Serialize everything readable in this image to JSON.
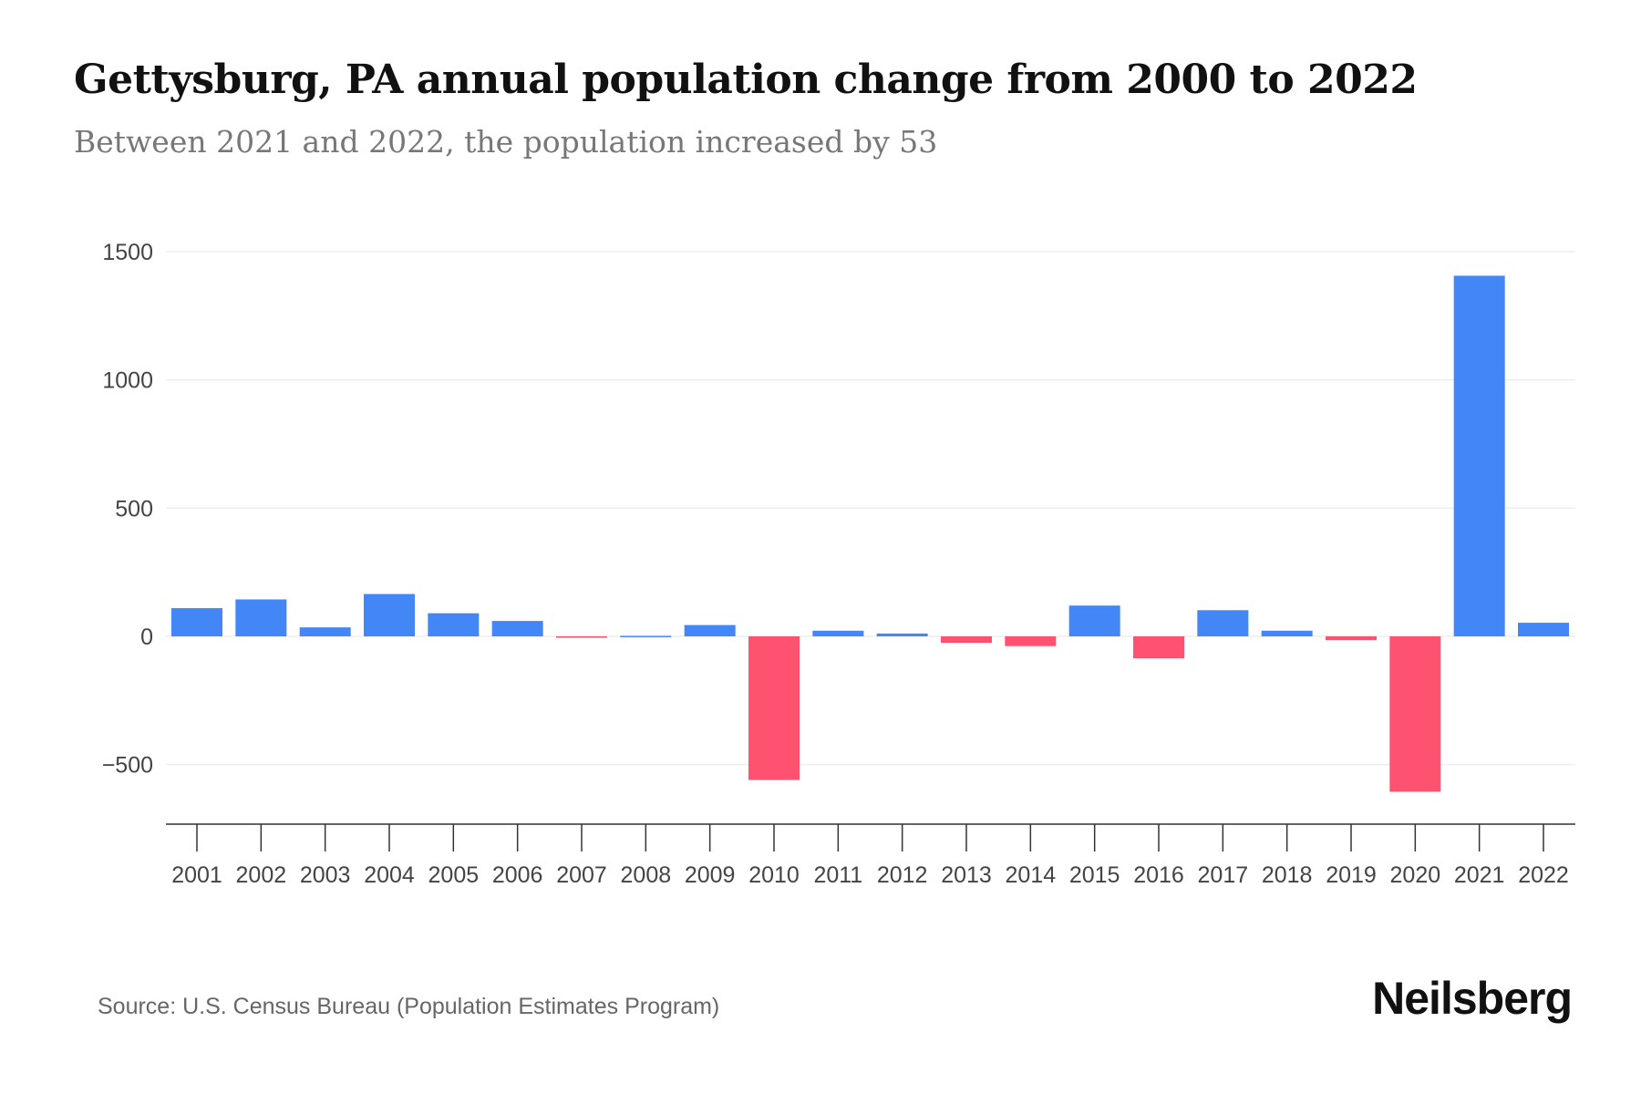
{
  "title": "Gettysburg, PA annual population change from 2000 to 2022",
  "subtitle": "Between 2021 and 2022, the population increased by 53",
  "source": "Source: U.S. Census Bureau (Population Estimates Program)",
  "logo": "Neilsberg",
  "colors": {
    "positive": "#4287f5",
    "negative": "#ff5270"
  },
  "chart_data": {
    "type": "bar",
    "title": "Gettysburg, PA annual population change from 2000 to 2022",
    "xlabel": "",
    "ylabel": "",
    "ylim": [
      -600,
      1500
    ],
    "yticks": [
      -500,
      0,
      500,
      1000,
      1500
    ],
    "ytick_labels": [
      "−500",
      "0",
      "500",
      "1000",
      "1500"
    ],
    "grid": true,
    "categories": [
      "2001",
      "2002",
      "2003",
      "2004",
      "2005",
      "2006",
      "2007",
      "2008",
      "2009",
      "2010",
      "2011",
      "2012",
      "2013",
      "2014",
      "2015",
      "2016",
      "2017",
      "2018",
      "2019",
      "2020",
      "2021",
      "2022"
    ],
    "values": [
      110,
      144,
      35,
      165,
      90,
      60,
      -5,
      2,
      44,
      -560,
      22,
      11,
      -25,
      -38,
      120,
      -86,
      102,
      22,
      -15,
      -606,
      1406,
      53
    ]
  }
}
